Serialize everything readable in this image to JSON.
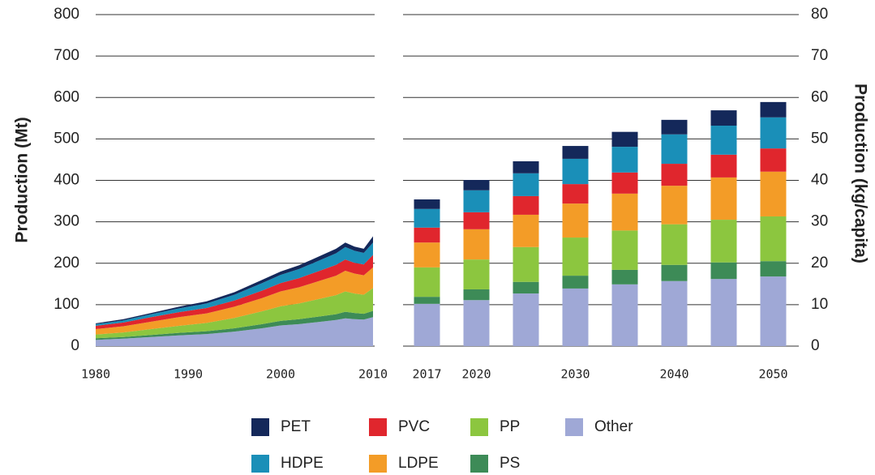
{
  "chart_data": {
    "type": "area",
    "y_label": "Production (Mt)",
    "y2_label": "Production (kg/capita)",
    "x": [
      1980,
      1983,
      1986,
      1989,
      1992,
      1995,
      1998,
      2000,
      2002,
      2004,
      2006,
      2007,
      2008,
      2009,
      2010
    ],
    "xlim": [
      1980,
      2010
    ],
    "xticks": [
      1980,
      1990,
      2000,
      2010
    ],
    "ylim": [
      0,
      800
    ],
    "yticks": [
      0,
      100,
      200,
      300,
      400,
      500,
      600,
      700,
      800
    ],
    "y2lim": [
      0,
      80
    ],
    "y2ticks": [
      0,
      10,
      20,
      30,
      40,
      50,
      60,
      70,
      80
    ],
    "grid": true,
    "stacked": true,
    "series": [
      {
        "name": "Other",
        "color": "#9fa8d6",
        "values": [
          15,
          18,
          22,
          26,
          29,
          35,
          43,
          50,
          53,
          58,
          63,
          67,
          65,
          64,
          70
        ]
      },
      {
        "name": "PS",
        "color": "#3d8b57",
        "values": [
          4,
          4,
          5,
          6,
          7,
          8,
          10,
          11,
          12,
          13,
          14,
          16,
          15,
          14,
          15
        ]
      },
      {
        "name": "PP",
        "color": "#8cc63f",
        "values": [
          9,
          11,
          14,
          17,
          20,
          25,
          31,
          35,
          38,
          42,
          46,
          49,
          47,
          46,
          55
        ]
      },
      {
        "name": "LDPE",
        "color": "#f39c27",
        "values": [
          13,
          15,
          18,
          21,
          23,
          27,
          32,
          36,
          39,
          43,
          47,
          50,
          48,
          47,
          50
        ]
      },
      {
        "name": "PVC",
        "color": "#e0262d",
        "values": [
          8,
          9,
          11,
          12,
          13,
          15,
          18,
          20,
          22,
          24,
          26,
          27,
          26,
          26,
          30
        ]
      },
      {
        "name": "HDPE",
        "color": "#1a8fb8",
        "values": [
          4,
          5,
          7,
          9,
          11,
          14,
          18,
          20,
          22,
          25,
          28,
          30,
          29,
          28,
          30
        ]
      },
      {
        "name": "PET",
        "color": "#14285a",
        "values": [
          2,
          3,
          3,
          4,
          5,
          6,
          8,
          8,
          9,
          10,
          11,
          11,
          10,
          10,
          15
        ]
      }
    ],
    "projection": {
      "type": "bar",
      "categories": [
        "2017",
        "2020",
        null,
        "2030",
        null,
        "2040",
        null,
        "2050"
      ],
      "series": [
        {
          "values": [
            102,
            111,
            127,
            139,
            149,
            157,
            162,
            168
          ]
        },
        {
          "values": [
            17,
            26,
            28,
            31,
            35,
            39,
            40,
            37
          ]
        },
        {
          "values": [
            71,
            72,
            84,
            92,
            95,
            98,
            103,
            108
          ]
        },
        {
          "values": [
            60,
            73,
            78,
            82,
            89,
            93,
            102,
            108
          ]
        },
        {
          "values": [
            36,
            41,
            45,
            47,
            51,
            53,
            55,
            56
          ]
        },
        {
          "values": [
            45,
            53,
            55,
            61,
            62,
            71,
            70,
            75
          ]
        },
        {
          "values": [
            23,
            25,
            29,
            31,
            36,
            35,
            37,
            37
          ]
        }
      ]
    }
  }
}
